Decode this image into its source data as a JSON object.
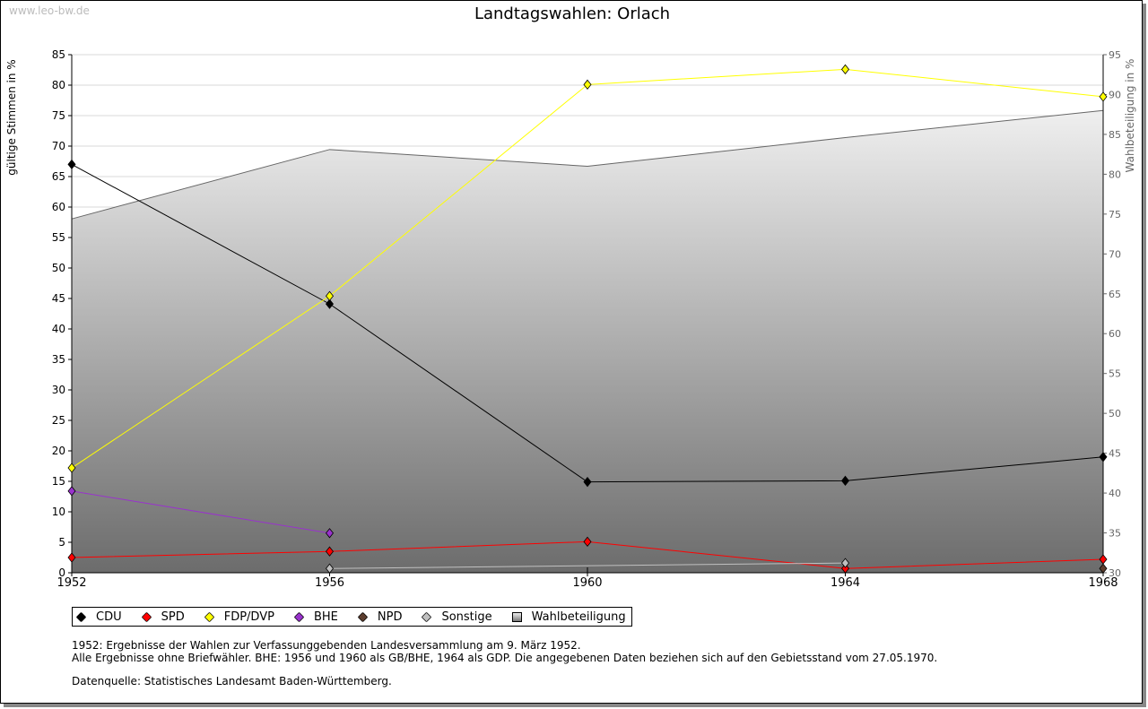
{
  "watermark": "www.leo-bw.de",
  "chart_data": {
    "type": "line",
    "title": "Landtagswahlen: Orlach",
    "ylabel": "gültige Stimmen in %",
    "y2label": "Wahlbeteiligung in %",
    "x": [
      1952,
      1956,
      1960,
      1964,
      1968
    ],
    "xticks": [
      "1952",
      "1956",
      "1960",
      "1964",
      "1968"
    ],
    "ylim": [
      0,
      85
    ],
    "yticks": [
      0,
      5,
      10,
      15,
      20,
      25,
      30,
      35,
      40,
      45,
      50,
      55,
      60,
      65,
      70,
      75,
      80,
      85
    ],
    "y2lim": [
      30,
      95
    ],
    "y2ticks": [
      30,
      35,
      40,
      45,
      50,
      55,
      60,
      65,
      70,
      75,
      80,
      85,
      90,
      95
    ],
    "grid": true,
    "legend_placement": "bottom-left",
    "series": [
      {
        "name": "CDU",
        "color": "#000000",
        "values": [
          67.0,
          44.1,
          14.9,
          15.1,
          19.0
        ]
      },
      {
        "name": "SPD",
        "color": "#ff0000",
        "values": [
          2.5,
          3.5,
          5.1,
          0.7,
          2.2
        ]
      },
      {
        "name": "FDP/DVP",
        "color": "#ffff00",
        "values": [
          17.2,
          45.4,
          80.1,
          82.6,
          78.1
        ]
      },
      {
        "name": "BHE",
        "color": "#9933cc",
        "values": [
          13.4,
          6.5,
          null,
          null,
          null
        ]
      },
      {
        "name": "NPD",
        "color": "#5c3d2e",
        "values": [
          null,
          null,
          null,
          null,
          0.7
        ]
      },
      {
        "name": "Sonstige",
        "color": "#c0c0c0",
        "values": [
          null,
          0.7,
          null,
          1.6,
          null
        ]
      }
    ],
    "turnout": {
      "name": "Wahlbeteiligung",
      "axis": "right",
      "values": [
        74.4,
        83.1,
        81.0,
        84.6,
        88.0
      ]
    }
  },
  "notes": [
    "1952: Ergebnisse der Wahlen zur Verfassunggebenden Landesversammlung am 9. März 1952.",
    "Alle Ergebnisse ohne Briefwähler. BHE: 1956 und 1960 als GB/BHE, 1964 als GDP. Die angegebenen Daten beziehen sich auf den Gebietsstand vom 27.05.1970.",
    "",
    "Datenquelle: Statistisches Landesamt Baden-Württemberg."
  ]
}
